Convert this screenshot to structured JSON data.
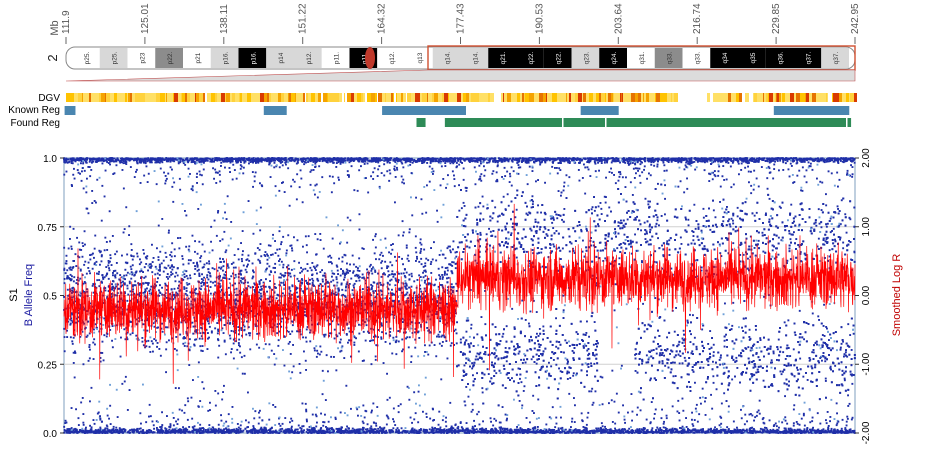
{
  "chromosome": {
    "label": "2",
    "unit": "Mb",
    "mb_ticks": [
      "111.9",
      "125.01",
      "138.11",
      "151.22",
      "164.32",
      "177.43",
      "190.53",
      "203.64",
      "216.74",
      "229.85",
      "242.95"
    ],
    "bands": [
      "p25.",
      "p25.",
      "p23",
      "p22.",
      "p21",
      "p16.",
      "p16.",
      "p14",
      "p12.",
      "p11.",
      "q11.",
      "q12.",
      "q13",
      "q14.",
      "q14.",
      "q21.",
      "q22.",
      "q22.",
      "q23.",
      "q24.",
      "q31.",
      "q33.",
      "q33.",
      "q34",
      "q35",
      "q36.",
      "q37.",
      "q37."
    ]
  },
  "tracks": {
    "dgv_label": "DGV",
    "known_label": "Known Reg",
    "found_label": "Found Reg"
  },
  "colors": {
    "baf_points": "#1f2fa8",
    "log_r_line": "#ff0000",
    "known_reg": "#4a86b0",
    "found_reg": "#2e8b57",
    "dgv_low": "#ffe066",
    "dgv_high": "#d93a00"
  },
  "chart_data": {
    "type": "scatter",
    "sample": "S1",
    "ylabel_left": "B Allele Freq",
    "ylabel_right": "Smoothed Log R",
    "yticks_left": [
      "1.0",
      "0.75",
      "0.5",
      "0.25",
      "0.0"
    ],
    "yticks_right": [
      "2.00",
      "1.00",
      "0.00",
      "-1.00",
      "-2.00"
    ],
    "xlim_mb": [
      111.9,
      242.95
    ],
    "ylim_left": [
      0,
      1
    ],
    "ylim_right": [
      -2,
      2
    ],
    "grid": true,
    "series": [
      {
        "name": "B Allele Freq",
        "kind": "scatter",
        "segments": [
          {
            "x": [
              111.9,
              177.0
            ],
            "bands": [
              0.0,
              0.5,
              1.0
            ],
            "mid_spread": 0.18
          },
          {
            "x": [
              177.0,
              242.95
            ],
            "bands": [
              0.0,
              0.28,
              0.72,
              1.0
            ],
            "mid_spread": 0.07
          }
        ]
      },
      {
        "name": "Smoothed Log R",
        "kind": "line",
        "segments": [
          {
            "x": [
              111.9,
              177.0
            ],
            "mean": -0.2
          },
          {
            "x": [
              177.0,
              242.95
            ],
            "mean": 0.25
          }
        ]
      }
    ],
    "regions": {
      "known": [
        [
          112.0,
          113.8
        ],
        [
          145.0,
          148.8
        ],
        [
          164.6,
          178.5
        ],
        [
          197.5,
          203.8
        ],
        [
          229.5,
          242.0
        ]
      ],
      "found": [
        [
          170.3,
          171.8
        ],
        [
          175.0,
          242.3
        ]
      ]
    }
  }
}
